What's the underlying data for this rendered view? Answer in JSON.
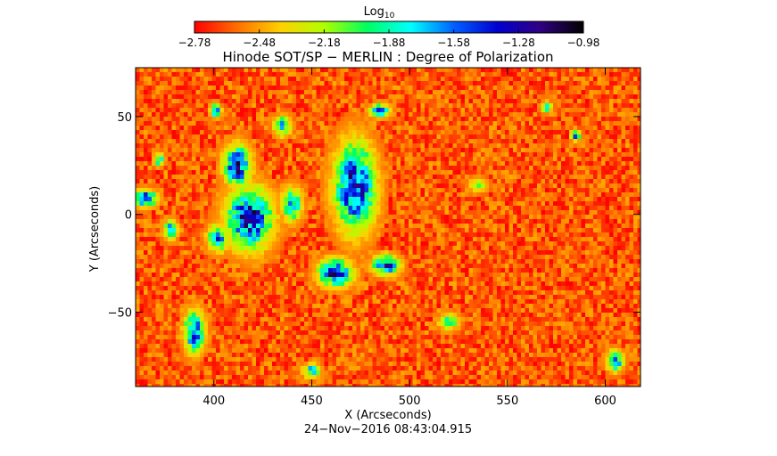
{
  "chart_data": {
    "type": "heatmap",
    "title": "Hinode SOT/SP − MERLIN : Degree of Polarization",
    "xlabel": "X (Arcseconds)",
    "ylabel": "Y (Arcseconds)",
    "xlim": [
      360,
      618
    ],
    "ylim": [
      -88,
      75
    ],
    "xticks": [
      400,
      450,
      500,
      550,
      600
    ],
    "yticks": [
      -50,
      0,
      50
    ],
    "colorbar": {
      "label": "Log",
      "label_subscript": "10",
      "range": [
        -2.78,
        -0.98
      ],
      "ticks": [
        "−2.78",
        "−2.48",
        "−2.18",
        "−1.88",
        "−1.58",
        "−1.28",
        "−0.98"
      ],
      "stops": [
        "#ff0000",
        "#ff7000",
        "#ffd000",
        "#b0ff00",
        "#00ff60",
        "#00ffff",
        "#0060ff",
        "#0000d0",
        "#300080",
        "#000000"
      ]
    },
    "background_level": -2.62,
    "features": [
      {
        "x": 418,
        "y": -2,
        "rx": 14,
        "ry": 18,
        "level": -1.1
      },
      {
        "x": 412,
        "y": 25,
        "rx": 8,
        "ry": 12,
        "level": -1.1
      },
      {
        "x": 472,
        "y": 14,
        "rx": 12,
        "ry": 26,
        "level": -1.05
      },
      {
        "x": 462,
        "y": -30,
        "rx": 10,
        "ry": 8,
        "level": -1.1
      },
      {
        "x": 488,
        "y": -26,
        "rx": 8,
        "ry": 6,
        "level": -1.25
      },
      {
        "x": 440,
        "y": 5,
        "rx": 6,
        "ry": 10,
        "level": -1.5
      },
      {
        "x": 390,
        "y": -60,
        "rx": 6,
        "ry": 12,
        "level": -1.2
      },
      {
        "x": 365,
        "y": 8,
        "rx": 7,
        "ry": 5,
        "level": -1.15
      },
      {
        "x": 402,
        "y": -12,
        "rx": 6,
        "ry": 8,
        "level": -1.4
      },
      {
        "x": 485,
        "y": 53,
        "rx": 6,
        "ry": 4,
        "level": -1.3
      },
      {
        "x": 435,
        "y": 45,
        "rx": 5,
        "ry": 6,
        "level": -1.6
      },
      {
        "x": 401,
        "y": 53,
        "rx": 3,
        "ry": 4,
        "level": -1.3
      },
      {
        "x": 378,
        "y": -8,
        "rx": 4,
        "ry": 6,
        "level": -1.5
      },
      {
        "x": 372,
        "y": 28,
        "rx": 3,
        "ry": 4,
        "level": -1.6
      },
      {
        "x": 570,
        "y": 55,
        "rx": 3,
        "ry": 3,
        "level": -1.5
      },
      {
        "x": 605,
        "y": -75,
        "rx": 5,
        "ry": 6,
        "level": -1.4
      },
      {
        "x": 450,
        "y": -80,
        "rx": 5,
        "ry": 4,
        "level": -1.5
      },
      {
        "x": 520,
        "y": -55,
        "rx": 6,
        "ry": 5,
        "level": -1.8
      },
      {
        "x": 585,
        "y": 40,
        "rx": 3,
        "ry": 3,
        "level": -1.5
      },
      {
        "x": 535,
        "y": 15,
        "rx": 5,
        "ry": 4,
        "level": -1.9
      }
    ]
  },
  "footer": {
    "timestamp": "24−Nov−2016 08:43:04.915"
  }
}
